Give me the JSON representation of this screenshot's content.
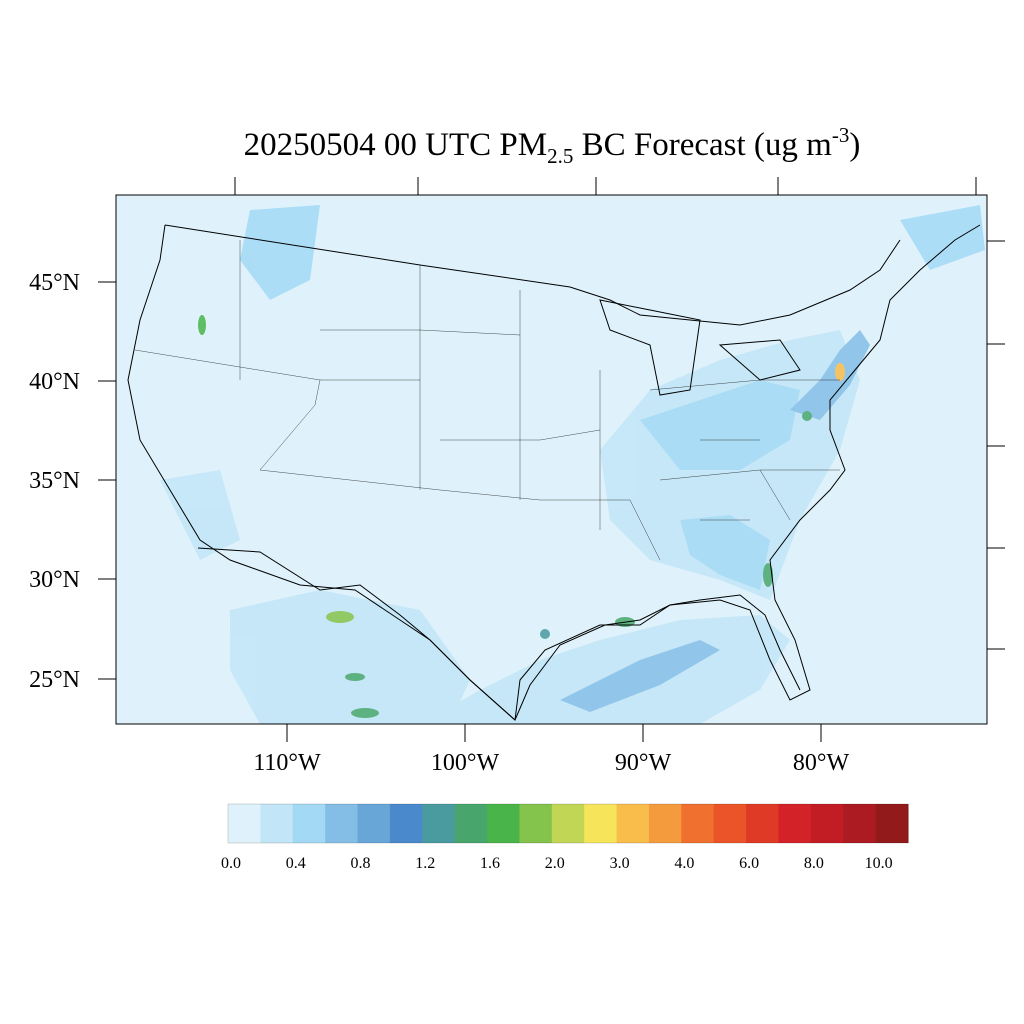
{
  "title": {
    "prefix": "20250504 00 UTC PM",
    "subscript": "2.5",
    "middle": " BC Forecast (ug m",
    "superscript": "-3",
    "suffix": ")"
  },
  "axes": {
    "lat_labels": [
      "45°N",
      "40°N",
      "35°N",
      "30°N",
      "25°N"
    ],
    "lon_labels": [
      "110°W",
      "100°W",
      "90°W",
      "80°W"
    ]
  },
  "colorbar": {
    "colors": [
      "#dff2fb",
      "#c2e6f7",
      "#a3d9f5",
      "#84bee6",
      "#69a6d8",
      "#4a8acc",
      "#4a9ba0",
      "#48a66c",
      "#49b44a",
      "#84c34c",
      "#c2d656",
      "#f6e45a",
      "#f8bd4a",
      "#f49b3d",
      "#f07030",
      "#eb5429",
      "#de3a26",
      "#d42229",
      "#c21d25",
      "#ad1b22",
      "#921a1b"
    ],
    "labels": [
      "0.0",
      "0.4",
      "0.8",
      "1.2",
      "1.6",
      "2.0",
      "3.0",
      "4.0",
      "6.0",
      "8.0",
      "10.0"
    ]
  },
  "colors": {
    "background_field": "#dff2fb",
    "frame": "#000000"
  }
}
